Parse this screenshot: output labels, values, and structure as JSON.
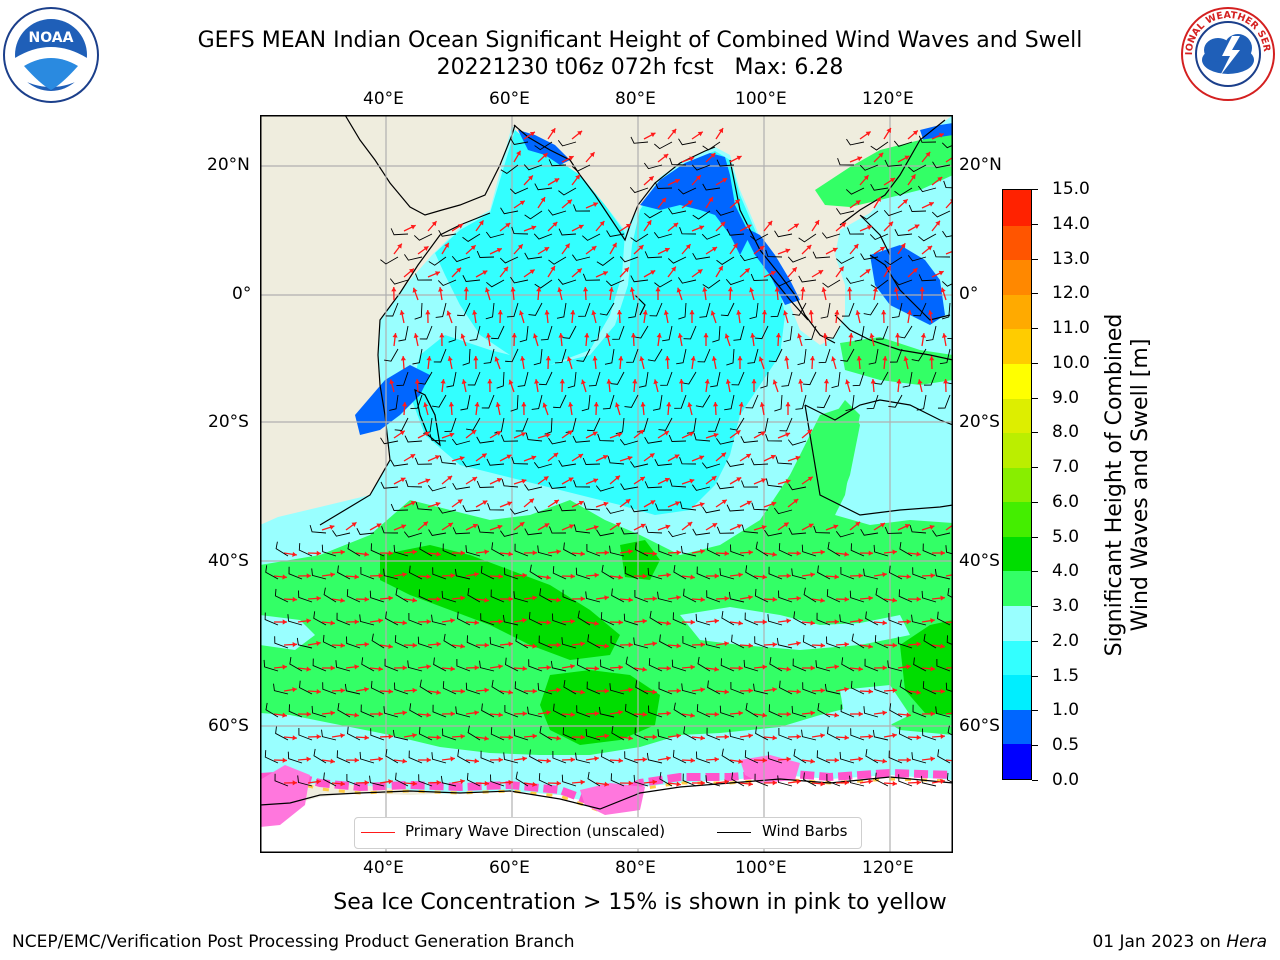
{
  "title": {
    "line1": "GEFS MEAN Indian Ocean Significant Height of Combined Wind Waves and Swell",
    "line2": "20221230 t06z 072h fcst   Max: 6.28"
  },
  "logos": {
    "left": "NOAA",
    "right": "NATIONAL WEATHER SERVICE"
  },
  "map": {
    "top_lon_labels": [
      "40°E",
      "60°E",
      "80°E",
      "100°E",
      "120°E"
    ],
    "bottom_lon_labels": [
      "40°E",
      "60°E",
      "80°E",
      "100°E",
      "120°E"
    ],
    "left_lat_labels": [
      "20°N",
      "0°",
      "20°S",
      "40°S",
      "60°S"
    ],
    "right_lat_labels": [
      "20°N",
      "0°",
      "20°S",
      "40°S",
      "60°S"
    ],
    "colors": {
      "land": "#efedde",
      "grid": "#b0b0b0",
      "arrow": "#ff1a1a",
      "barb": "#000000"
    }
  },
  "legend": {
    "primary_wave_label": "Primary Wave Direction (unscaled)",
    "wind_barbs_label": "Wind Barbs"
  },
  "colorbar": {
    "label_line1": "Significant Height of Combined",
    "label_line2": "Wind Waves and Swell [m]",
    "ticks": [
      "15.0",
      "14.0",
      "13.0",
      "12.0",
      "11.0",
      "10.0",
      "9.0",
      "8.0",
      "7.0",
      "6.0",
      "5.0",
      "4.0",
      "3.0",
      "2.0",
      "1.5",
      "1.0",
      "0.5",
      "0.0"
    ],
    "colors_bottom_to_top": [
      "#0000ff",
      "#0066ff",
      "#00eeff",
      "#33ffff",
      "#99ffff",
      "#33ff66",
      "#00dd00",
      "#44ee00",
      "#88ee00",
      "#bbee00",
      "#ddee00",
      "#ffff00",
      "#ffcc00",
      "#ffaa00",
      "#ff8800",
      "#ff5500",
      "#ff2200"
    ]
  },
  "caption": "Sea Ice Concentration > 15% is shown in pink to yellow",
  "footer": {
    "left": "NCEP/EMC/Verification Post Processing Product Generation Branch",
    "right_date": "01 Jan 2023 on ",
    "right_host": "Hera"
  }
}
